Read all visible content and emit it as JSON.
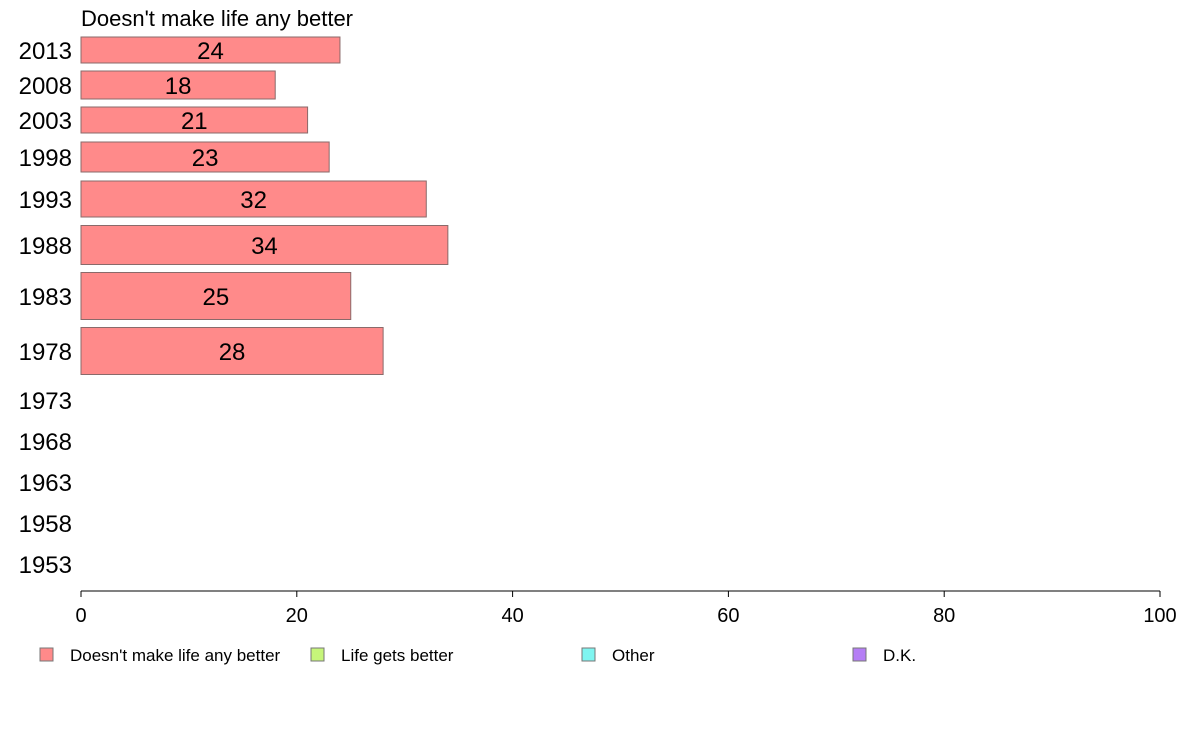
{
  "chart_data": {
    "type": "bar",
    "orientation": "horizontal",
    "title": "Doesn't make life any better",
    "categories": [
      "2013",
      "2008",
      "2003",
      "1998",
      "1993",
      "1988",
      "1983",
      "1978",
      "1973",
      "1968",
      "1963",
      "1958",
      "1953"
    ],
    "series": [
      {
        "name": "Doesn't make life any better",
        "color": "#ff8a8a",
        "values": [
          24,
          18,
          21,
          23,
          32,
          34,
          25,
          28,
          null,
          null,
          null,
          null,
          null
        ]
      }
    ],
    "xlim": [
      0,
      100
    ],
    "xticks": [
      0,
      20,
      40,
      60,
      80,
      100
    ],
    "xlabel": "",
    "ylabel": "",
    "grid": false,
    "legend_position": "bottom",
    "legend": [
      {
        "label": "Doesn't make life any better",
        "color": "#ff8a8a"
      },
      {
        "label": "Life gets better",
        "color": "#c6f57a"
      },
      {
        "label": "Other",
        "color": "#7ff5f0"
      },
      {
        "label": "D.K.",
        "color": "#b57ef5"
      }
    ]
  }
}
